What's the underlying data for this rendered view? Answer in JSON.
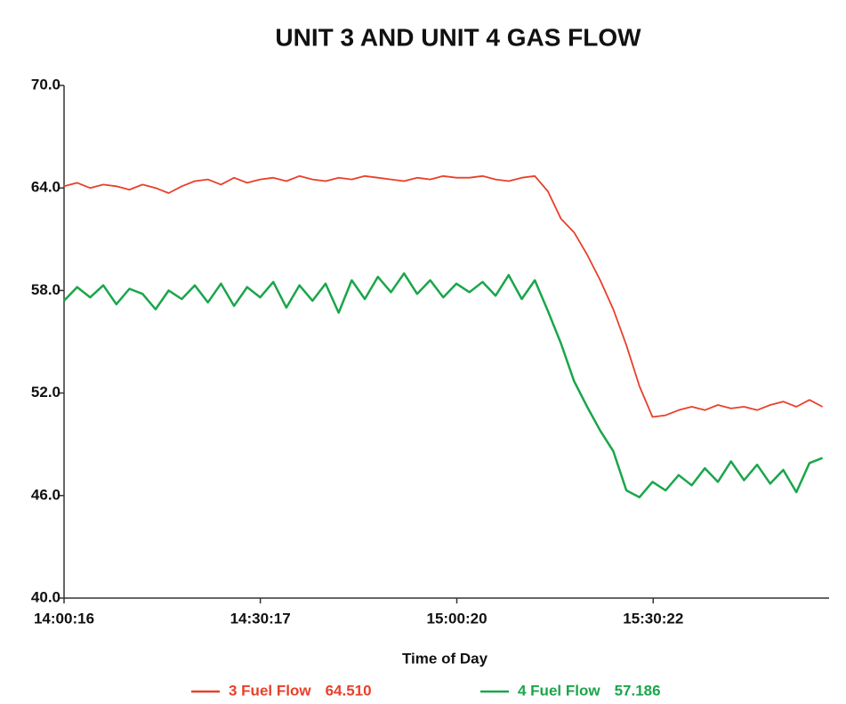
{
  "chart_data": {
    "type": "line",
    "title": "UNIT 3 AND UNIT 4 GAS FLOW",
    "x_label": "Time of Day",
    "x": [
      "14:00:16",
      "14:02:16",
      "14:04:16",
      "14:06:16",
      "14:08:16",
      "14:10:16",
      "14:12:16",
      "14:14:16",
      "14:16:16",
      "14:18:16",
      "14:20:16",
      "14:22:16",
      "14:24:16",
      "14:26:16",
      "14:28:16",
      "14:30:16",
      "14:32:16",
      "14:34:16",
      "14:36:16",
      "14:38:16",
      "14:40:16",
      "14:42:16",
      "14:44:16",
      "14:46:16",
      "14:48:16",
      "14:50:16",
      "14:52:16",
      "14:54:16",
      "14:56:16",
      "14:58:16",
      "15:00:16",
      "15:02:16",
      "15:04:16",
      "15:06:16",
      "15:08:16",
      "15:10:16",
      "15:12:16",
      "15:14:16",
      "15:16:16",
      "15:18:16",
      "15:20:16",
      "15:22:16",
      "15:24:16",
      "15:26:16",
      "15:28:16",
      "15:30:16",
      "15:32:16",
      "15:34:16",
      "15:36:16",
      "15:38:16",
      "15:40:16",
      "15:42:16",
      "15:44:16",
      "15:46:16",
      "15:48:16",
      "15:50:16",
      "15:52:16",
      "15:54:16",
      "15:56:16"
    ],
    "series": [
      {
        "name": "3 Fuel Flow",
        "readout": "64.510",
        "color": "#e8402a",
        "values": [
          64.1,
          64.3,
          64.0,
          64.2,
          64.1,
          63.9,
          64.2,
          64.0,
          63.7,
          64.1,
          64.4,
          64.5,
          64.2,
          64.6,
          64.3,
          64.5,
          64.6,
          64.4,
          64.7,
          64.5,
          64.4,
          64.6,
          64.5,
          64.7,
          64.6,
          64.5,
          64.4,
          64.6,
          64.5,
          64.7,
          64.6,
          64.6,
          64.7,
          64.5,
          64.4,
          64.6,
          64.7,
          63.8,
          62.2,
          61.4,
          60.1,
          58.6,
          56.9,
          54.8,
          52.4,
          50.6,
          50.7,
          51.0,
          51.2,
          51.0,
          51.3,
          51.1,
          51.2,
          51.0,
          51.3,
          51.5,
          51.2,
          51.6,
          51.2
        ]
      },
      {
        "name": "4 Fuel Flow",
        "readout": "57.186",
        "color": "#1aa64a",
        "values": [
          57.4,
          58.2,
          57.6,
          58.3,
          57.2,
          58.1,
          57.8,
          56.9,
          58.0,
          57.5,
          58.3,
          57.3,
          58.4,
          57.1,
          58.2,
          57.6,
          58.5,
          57.0,
          58.3,
          57.4,
          58.4,
          56.7,
          58.6,
          57.5,
          58.8,
          57.9,
          59.0,
          57.8,
          58.6,
          57.6,
          58.4,
          57.9,
          58.5,
          57.7,
          58.9,
          57.5,
          58.6,
          56.8,
          54.9,
          52.7,
          51.2,
          49.8,
          48.6,
          46.3,
          45.9,
          46.8,
          46.3,
          47.2,
          46.6,
          47.6,
          46.8,
          48.0,
          46.9,
          47.8,
          46.7,
          47.5,
          46.2,
          47.9,
          48.2
        ]
      }
    ],
    "xlim": [
      "14:00:16",
      "15:57:16"
    ],
    "xticks": [
      "14:00:16",
      "14:30:17",
      "15:00:20",
      "15:30:22"
    ],
    "ylim": [
      40,
      70
    ],
    "yticks": [
      {
        "value": 40,
        "label": "40.0"
      },
      {
        "value": 46,
        "label": "46.0"
      },
      {
        "value": 52,
        "label": "52.0"
      },
      {
        "value": 58,
        "label": "58.0"
      },
      {
        "value": 64,
        "label": "64.0"
      },
      {
        "value": 70,
        "label": "70.0"
      }
    ]
  }
}
